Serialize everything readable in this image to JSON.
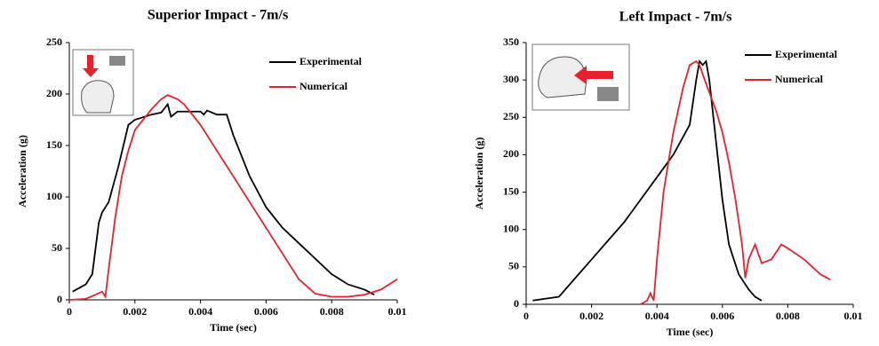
{
  "chart_data": [
    {
      "type": "line",
      "title": "Superior Impact - 7m/s",
      "xlabel": "Time (sec)",
      "ylabel": "Acceleration (g)",
      "xlim": [
        0,
        0.01
      ],
      "xticks": [
        0,
        0.002,
        0.004,
        0.006,
        0.008,
        0.01
      ],
      "ylim": [
        0,
        250
      ],
      "yticks": [
        0,
        50,
        100,
        150,
        200,
        250
      ],
      "legend": "upper right",
      "series": [
        {
          "name": "Experimental",
          "color": "#000000",
          "x": [
            0.0001,
            0.0005,
            0.0007,
            0.0008,
            0.0009,
            0.001,
            0.0012,
            0.0015,
            0.0018,
            0.002,
            0.0025,
            0.0028,
            0.003,
            0.0031,
            0.0033,
            0.004,
            0.0041,
            0.0042,
            0.0045,
            0.0048,
            0.005,
            0.0055,
            0.006,
            0.0065,
            0.007,
            0.0075,
            0.008,
            0.0085,
            0.009,
            0.0093
          ],
          "values": [
            8,
            15,
            25,
            50,
            75,
            85,
            95,
            130,
            170,
            175,
            180,
            182,
            190,
            178,
            183,
            183,
            180,
            184,
            180,
            180,
            160,
            120,
            90,
            70,
            55,
            40,
            25,
            15,
            10,
            5
          ]
        },
        {
          "name": "Numerical",
          "color": "#e8202a",
          "x": [
            0,
            0.0005,
            0.0008,
            0.001,
            0.0011,
            0.0012,
            0.0014,
            0.0016,
            0.0018,
            0.002,
            0.0025,
            0.0028,
            0.003,
            0.0033,
            0.0035,
            0.004,
            0.0045,
            0.005,
            0.0055,
            0.006,
            0.0065,
            0.007,
            0.0075,
            0.008,
            0.0085,
            0.009,
            0.0095,
            0.01
          ],
          "values": [
            0,
            1,
            5,
            8,
            3,
            30,
            80,
            120,
            145,
            165,
            185,
            195,
            199,
            195,
            190,
            170,
            145,
            120,
            95,
            70,
            45,
            20,
            6,
            3,
            3,
            5,
            10,
            20
          ]
        }
      ]
    },
    {
      "type": "line",
      "title": "Left Impact - 7m/s",
      "xlabel": "Time (sec)",
      "ylabel": "Acceleration (g)",
      "xlim": [
        0,
        0.01
      ],
      "xticks": [
        0,
        0.002,
        0.004,
        0.006,
        0.008,
        0.01
      ],
      "ylim": [
        0,
        350
      ],
      "yticks": [
        0,
        50,
        100,
        150,
        200,
        250,
        300,
        350
      ],
      "legend": "upper right",
      "series": [
        {
          "name": "Experimental",
          "color": "#000000",
          "x": [
            0.0002,
            0.001,
            0.0015,
            0.002,
            0.0025,
            0.003,
            0.0035,
            0.004,
            0.0045,
            0.005,
            0.0052,
            0.0053,
            0.0054,
            0.0055,
            0.0056,
            0.0058,
            0.006,
            0.0062,
            0.0065,
            0.0068,
            0.007,
            0.0072
          ],
          "values": [
            5,
            10,
            35,
            60,
            85,
            110,
            140,
            170,
            200,
            240,
            300,
            325,
            320,
            325,
            300,
            220,
            140,
            80,
            40,
            20,
            10,
            5
          ]
        },
        {
          "name": "Numerical",
          "color": "#e8202a",
          "x": [
            0.0035,
            0.0037,
            0.0038,
            0.0039,
            0.004,
            0.0042,
            0.0045,
            0.0048,
            0.005,
            0.0052,
            0.0053,
            0.0055,
            0.0058,
            0.006,
            0.0062,
            0.0064,
            0.0066,
            0.0067,
            0.0068,
            0.007,
            0.0072,
            0.0075,
            0.0078,
            0.008,
            0.0085,
            0.009,
            0.0093
          ],
          "values": [
            0,
            5,
            15,
            5,
            60,
            150,
            230,
            290,
            320,
            325,
            320,
            295,
            260,
            230,
            190,
            140,
            80,
            35,
            60,
            80,
            55,
            60,
            80,
            75,
            60,
            40,
            33
          ]
        }
      ]
    }
  ]
}
